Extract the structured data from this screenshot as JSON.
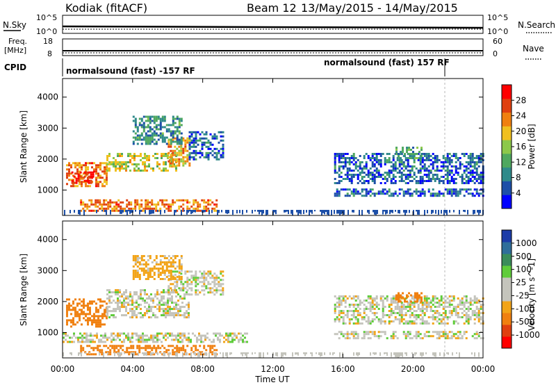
{
  "header": {
    "station": "Kodiak (fitACF)",
    "beam": "Beam 12",
    "date_range": "13/May/2015 - 14/May/2015"
  },
  "top_panels": {
    "nsky_label": "N.Sky",
    "nsky_ticks": [
      "10^5",
      "10^0"
    ],
    "nsearch_label": "N.Search",
    "nsearch_ticks": [
      "10^5",
      "10^0"
    ],
    "freq_label": "Freq.",
    "freq_unit": "[MHz]",
    "freq_ticks": [
      "18",
      "8"
    ],
    "nave_label": "Nave",
    "nave_ticks": [
      "60",
      "0"
    ],
    "cpid_label": "CPID",
    "cpid_segments": [
      {
        "label": "normalsound (fast) -157 RF",
        "start_hour": 0,
        "end_hour": 21.8
      },
      {
        "label": "normalsound (fast) 157 RF",
        "start_hour": 21.8,
        "end_hour": 24
      }
    ]
  },
  "axes": {
    "x_ticks": [
      "00:00",
      "04:00",
      "08:00",
      "12:00",
      "16:00",
      "20:00",
      "00:00"
    ],
    "xlabel": "Time UT",
    "ylabel": "Slant Range [km]",
    "y_ticks": [
      "1000",
      "2000",
      "3000",
      "4000"
    ]
  },
  "power_scale": {
    "label": "Power [dB]",
    "ticks": [
      "4",
      "8",
      "12",
      "16",
      "20",
      "24",
      "28"
    ]
  },
  "velocity_scale": {
    "label": "Velocity [m s^-1]",
    "ticks": [
      "1000",
      "500",
      "100",
      "25",
      "-25",
      "-100",
      "-500",
      "-1000"
    ]
  },
  "chart_data": [
    {
      "type": "heatmap",
      "panel": "power",
      "xlabel": "Time UT",
      "ylabel": "Slant Range [km]",
      "xlim": [
        0,
        24
      ],
      "ylim": [
        180,
        4600
      ],
      "colorbar_label": "Power [dB]",
      "colorbar_range": [
        0,
        30
      ],
      "regions": [
        {
          "t0": 0.2,
          "t1": 2.5,
          "r0": 1100,
          "r1": 1900,
          "value": 22
        },
        {
          "t0": 0.5,
          "t1": 1.8,
          "r0": 1200,
          "r1": 1600,
          "value": 27
        },
        {
          "t0": 2.5,
          "t1": 6.5,
          "r0": 1600,
          "r1": 2200,
          "value": 16
        },
        {
          "t0": 6.0,
          "t1": 7.2,
          "r0": 1800,
          "r1": 2700,
          "value": 20
        },
        {
          "t0": 7.2,
          "t1": 9.2,
          "r0": 2000,
          "r1": 2900,
          "value": 6
        },
        {
          "t0": 1.0,
          "t1": 8.8,
          "r0": 300,
          "r1": 700,
          "value": 22
        },
        {
          "t0": 4.0,
          "t1": 6.8,
          "r0": 2500,
          "r1": 3400,
          "value": 9
        },
        {
          "t0": 15.5,
          "t1": 24.0,
          "r0": 1200,
          "r1": 2200,
          "value": 6
        },
        {
          "t0": 15.5,
          "t1": 24.0,
          "r0": 800,
          "r1": 1050,
          "value": 6
        },
        {
          "t0": 19.0,
          "t1": 20.5,
          "r0": 2000,
          "r1": 2400,
          "value": 10
        }
      ]
    },
    {
      "type": "heatmap",
      "panel": "velocity",
      "xlabel": "Time UT",
      "ylabel": "Slant Range [km]",
      "xlim": [
        0,
        24
      ],
      "ylim": [
        180,
        4600
      ],
      "colorbar_label": "Velocity [m s^-1]",
      "colorbar_range": [
        -1000,
        1000
      ],
      "regions": [
        {
          "t0": 0.2,
          "t1": 2.5,
          "r0": 1200,
          "r1": 2100,
          "value": -200
        },
        {
          "t0": 2.5,
          "t1": 7.2,
          "r0": 1500,
          "r1": 2400,
          "value": 0
        },
        {
          "t0": 6.0,
          "t1": 9.2,
          "r0": 2200,
          "r1": 3000,
          "value": 0
        },
        {
          "t0": 0.0,
          "t1": 10.5,
          "r0": 700,
          "r1": 1000,
          "value": 0
        },
        {
          "t0": 1.0,
          "t1": 8.8,
          "r0": 300,
          "r1": 600,
          "value": -150
        },
        {
          "t0": 4.0,
          "t1": 6.8,
          "r0": 2700,
          "r1": 3500,
          "value": -50
        },
        {
          "t0": 15.5,
          "t1": 24.0,
          "r0": 1300,
          "r1": 2200,
          "value": 0
        },
        {
          "t0": 15.5,
          "t1": 24.0,
          "r0": 800,
          "r1": 1050,
          "value": 0
        },
        {
          "t0": 19.0,
          "t1": 20.5,
          "r0": 2000,
          "r1": 2300,
          "value": -400
        }
      ]
    }
  ]
}
